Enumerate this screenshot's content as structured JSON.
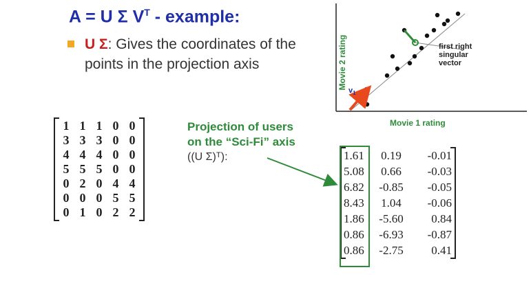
{
  "title": {
    "text": "A = U Σ V",
    "superscript": "T",
    "suffix": " - example:"
  },
  "bullet": {
    "lead": "U Σ",
    "text": ":  Gives the coordinates of the points in the projection axis"
  },
  "matrix_a": [
    [
      "1",
      "1",
      "1",
      "0",
      "0"
    ],
    [
      "3",
      "3",
      "3",
      "0",
      "0"
    ],
    [
      "4",
      "4",
      "4",
      "0",
      "0"
    ],
    [
      "5",
      "5",
      "5",
      "0",
      "0"
    ],
    [
      "0",
      "2",
      "0",
      "4",
      "4"
    ],
    [
      "0",
      "0",
      "0",
      "5",
      "5"
    ],
    [
      "0",
      "1",
      "0",
      "2",
      "2"
    ]
  ],
  "projection_caption": {
    "line1": "Projection of users",
    "line2": "on the “Sci-Fi” axis",
    "formula": "((U Σ)ᵀ):"
  },
  "matrix_us": [
    [
      "1.61",
      "0.19",
      "-0.01"
    ],
    [
      "5.08",
      "0.66",
      "-0.03"
    ],
    [
      "6.82",
      "-0.85",
      "-0.05"
    ],
    [
      "8.43",
      "1.04",
      "-0.06"
    ],
    [
      "1.86",
      "-5.60",
      "0.84"
    ],
    [
      "0.86",
      "-6.93",
      "-0.87"
    ],
    [
      "0.86",
      "-2.75",
      "0.41"
    ]
  ],
  "scatter": {
    "xlabel": "Movie 1 rating",
    "ylabel": "Movie 2 rating",
    "annotation_lines": [
      "first right",
      "singular",
      "vector"
    ],
    "v1_label": "v",
    "v1_sub": "1"
  },
  "colors": {
    "title": "#1f2fa8",
    "accent_red": "#c81e1e",
    "highlight_green": "#2e8b3a",
    "bullet_orange": "#f5a623",
    "arrow_orange": "#e8491d"
  }
}
